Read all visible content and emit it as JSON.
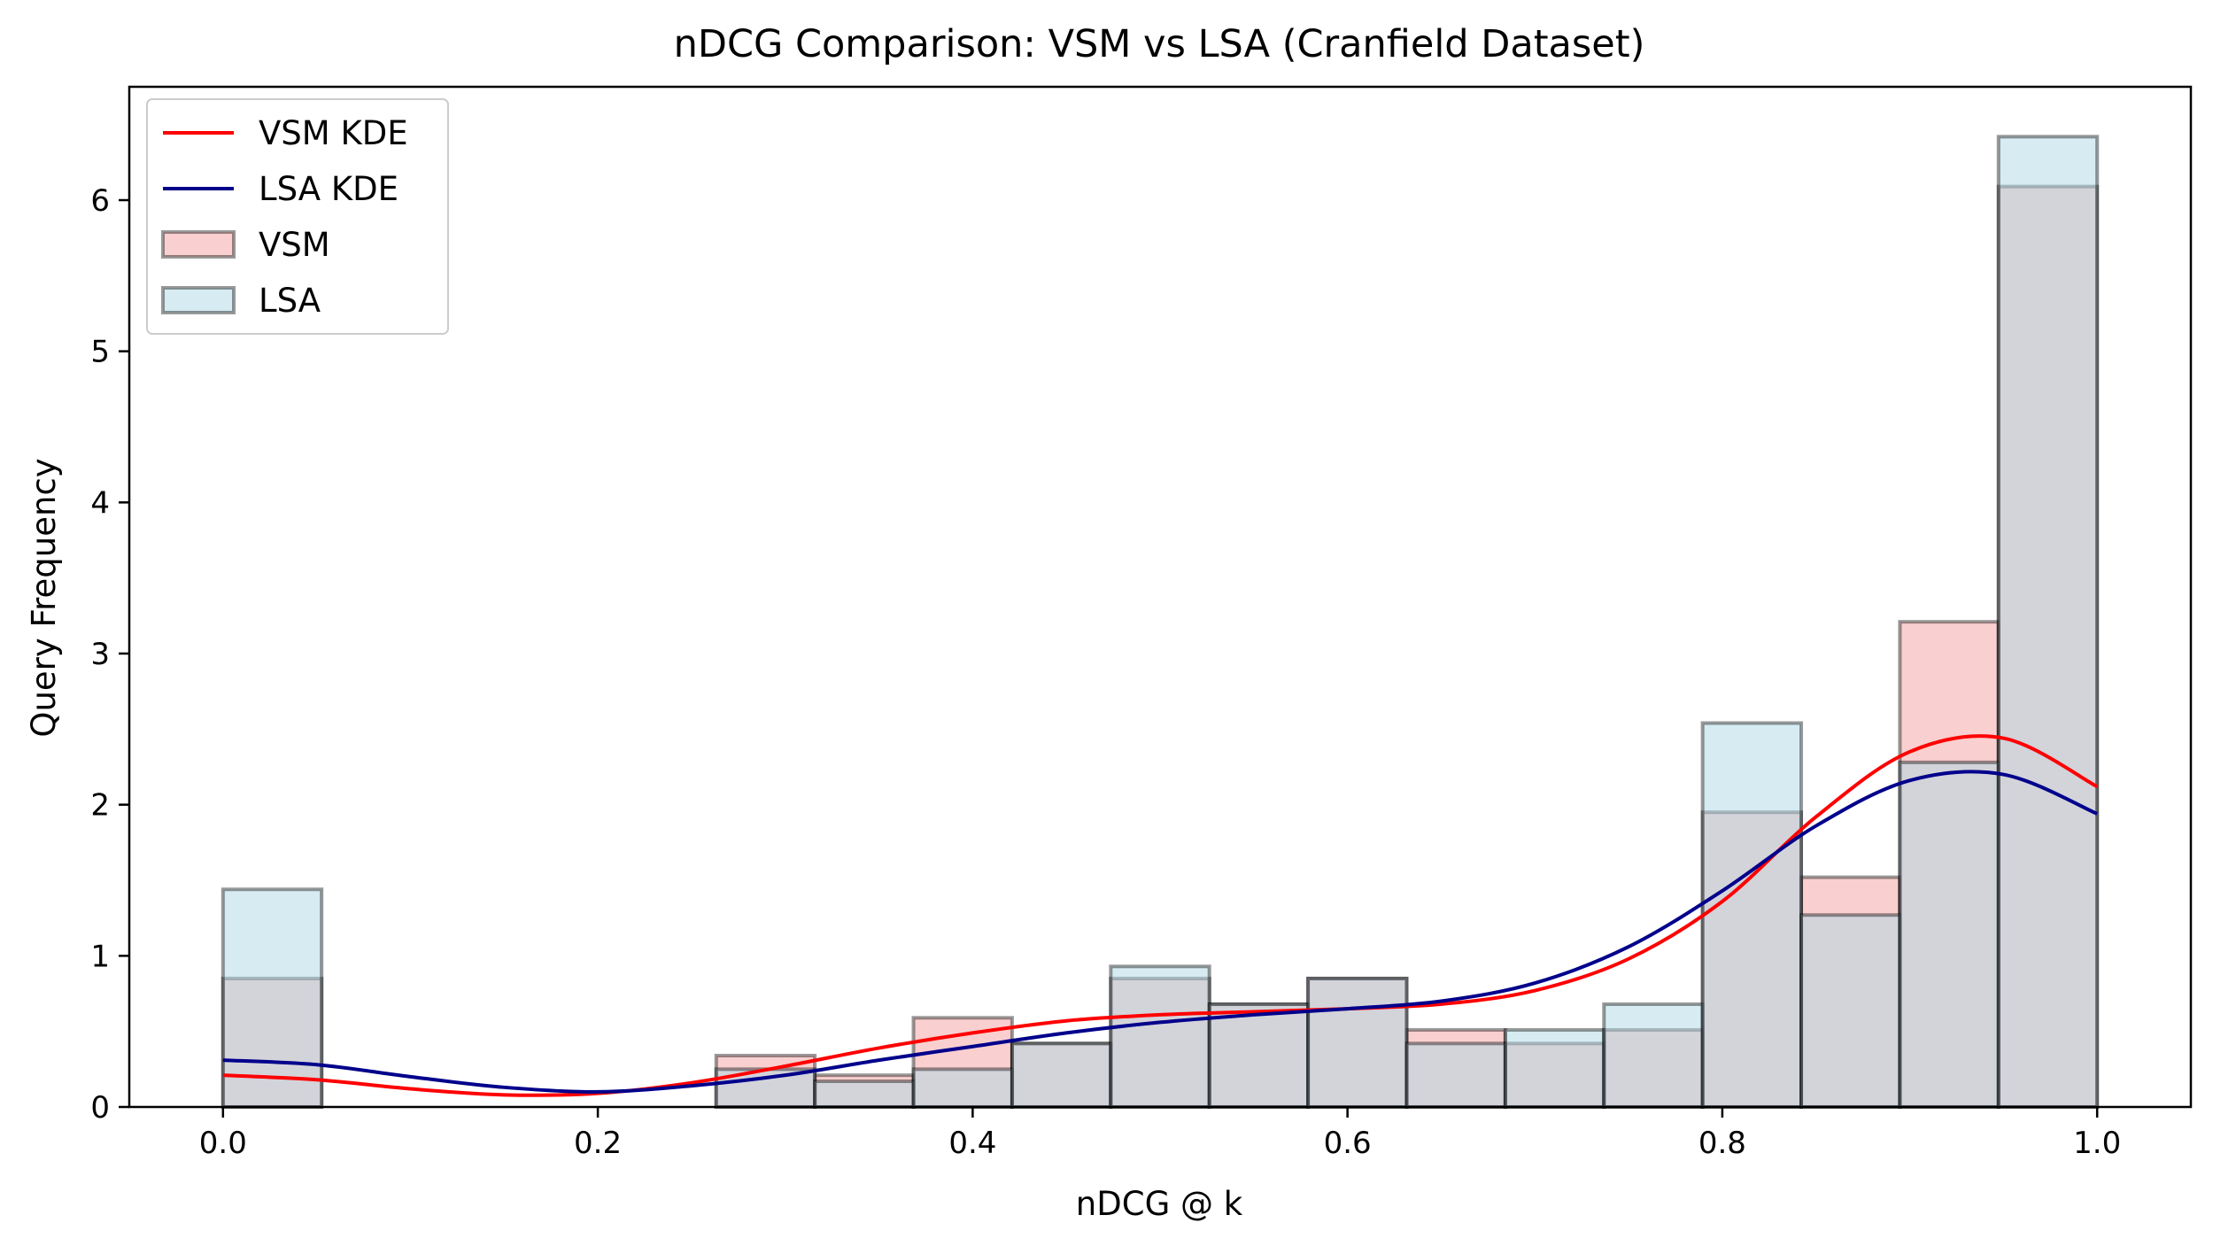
{
  "chart_data": {
    "type": "bar",
    "title": "nDCG Comparison: VSM vs LSA (Cranfield Dataset)",
    "xlabel": "nDCG @ k",
    "ylabel": "Query Frequency",
    "xlim": [
      -0.05,
      1.05
    ],
    "ylim": [
      0,
      6.75
    ],
    "xticks": [
      0.0,
      0.2,
      0.4,
      0.6,
      0.8,
      1.0
    ],
    "xtick_labels": [
      "0.0",
      "0.2",
      "0.4",
      "0.6",
      "0.8",
      "1.0"
    ],
    "yticks": [
      0,
      1,
      2,
      3,
      4,
      5,
      6
    ],
    "ytick_labels": [
      "0",
      "1",
      "2",
      "3",
      "4",
      "5",
      "6"
    ],
    "grid": false,
    "legend_position": "top-left",
    "bins": {
      "start": 0.0,
      "end": 1.0,
      "count": 19
    },
    "series": [
      {
        "name": "VSM",
        "kind": "histogram",
        "color": "#f4a0a0",
        "values": [
          0.85,
          0,
          0,
          0,
          0,
          0.34,
          0.21,
          0.59,
          0.42,
          0.85,
          0.68,
          0.85,
          0.51,
          0.42,
          0.51,
          1.95,
          1.52,
          3.21,
          6.09
        ]
      },
      {
        "name": "LSA",
        "kind": "histogram",
        "color": "#add8e6",
        "values": [
          1.44,
          0,
          0,
          0,
          0,
          0.25,
          0.17,
          0.25,
          0.42,
          0.93,
          0.68,
          0.85,
          0.42,
          0.51,
          0.68,
          2.54,
          1.27,
          2.28,
          6.42
        ]
      },
      {
        "name": "VSM KDE",
        "kind": "line",
        "color": "#ff0000",
        "x": [
          0.0,
          0.05,
          0.1,
          0.15,
          0.2,
          0.25,
          0.3,
          0.35,
          0.4,
          0.45,
          0.5,
          0.55,
          0.6,
          0.65,
          0.7,
          0.75,
          0.8,
          0.85,
          0.9,
          0.95,
          1.0
        ],
        "y": [
          0.21,
          0.18,
          0.12,
          0.08,
          0.09,
          0.16,
          0.27,
          0.39,
          0.49,
          0.57,
          0.61,
          0.63,
          0.65,
          0.68,
          0.77,
          0.98,
          1.36,
          1.92,
          2.35,
          2.44,
          2.12
        ]
      },
      {
        "name": "LSA KDE",
        "kind": "line",
        "color": "#00008b",
        "x": [
          0.0,
          0.05,
          0.1,
          0.15,
          0.2,
          0.25,
          0.3,
          0.35,
          0.4,
          0.45,
          0.5,
          0.55,
          0.6,
          0.65,
          0.7,
          0.75,
          0.8,
          0.85,
          0.9,
          0.95,
          1.0
        ],
        "y": [
          0.31,
          0.28,
          0.2,
          0.13,
          0.1,
          0.14,
          0.21,
          0.31,
          0.4,
          0.49,
          0.56,
          0.61,
          0.65,
          0.7,
          0.82,
          1.06,
          1.43,
          1.86,
          2.16,
          2.2,
          1.94
        ]
      }
    ],
    "legend_order": [
      "VSM KDE",
      "LSA KDE",
      "VSM",
      "LSA"
    ]
  }
}
